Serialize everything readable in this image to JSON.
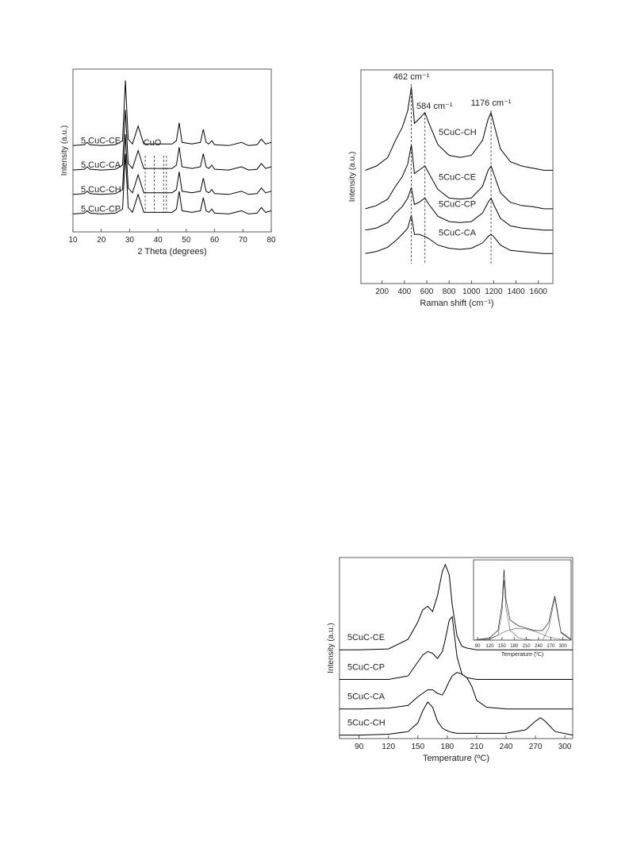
{
  "chart_data": [
    {
      "type": "line",
      "x_label": "2 Theta (degrees)",
      "y_label": "Intensity (a.u.)",
      "x": [
        10,
        14,
        15,
        16,
        20,
        25,
        27.5,
        28.5,
        29.5,
        31,
        33,
        35,
        40,
        45,
        46.5,
        47.5,
        48.5,
        52,
        55,
        56,
        57,
        58,
        59,
        60,
        65,
        69.5,
        72,
        75,
        76.5,
        78,
        80
      ],
      "series": [
        {
          "name": "5 CuC-CE",
          "color": "#000000",
          "values": [
            53,
            53.5,
            55,
            53.5,
            53,
            53.5,
            56,
            93,
            57,
            54,
            65,
            54,
            54,
            54,
            56,
            67,
            55,
            54,
            55,
            63,
            55,
            54,
            56,
            53.5,
            53,
            55,
            53,
            53.5,
            57,
            54,
            55
          ]
        },
        {
          "name": "5 CuC-CA",
          "color": "#000000",
          "values": [
            38,
            38.5,
            40,
            38.5,
            38,
            38.5,
            41,
            75,
            42,
            39,
            50,
            39,
            39,
            39,
            41,
            52,
            40,
            39,
            40,
            48,
            40,
            39,
            41,
            38.5,
            38,
            40,
            38,
            38.5,
            42,
            39,
            40
          ]
        },
        {
          "name": "5 CuC-CH",
          "color": "#000000",
          "values": [
            23,
            23.5,
            25,
            23.5,
            23,
            23.5,
            26,
            60,
            27,
            24,
            35,
            24,
            24,
            24,
            26,
            37,
            25,
            24,
            25,
            33,
            25,
            24,
            26,
            23.5,
            23,
            25,
            23,
            23.5,
            27,
            24,
            25
          ]
        },
        {
          "name": "5 CuC-CP",
          "color": "#000000",
          "values": [
            11,
            11.5,
            13,
            11.5,
            11,
            11.5,
            14,
            48,
            15,
            12,
            23,
            12,
            12,
            12,
            14,
            25,
            13,
            12,
            13,
            21,
            13,
            12,
            14,
            11.5,
            11,
            13,
            11,
            11.5,
            15,
            12,
            13
          ]
        }
      ],
      "annotations": [
        {
          "text": "CuO",
          "x": 38
        }
      ],
      "reference_lines": [
        35.5,
        38.7,
        42,
        43
      ],
      "xlim": [
        10,
        80
      ],
      "xticks": [
        10,
        20,
        30,
        40,
        50,
        60,
        70,
        80
      ],
      "ylim": [
        0,
        100
      ]
    },
    {
      "type": "line",
      "x_label": "Raman shift (cm⁻¹)",
      "y_label": "Intensity (a.u.)",
      "x": [
        50,
        150,
        250,
        320,
        380,
        430,
        462,
        490,
        530,
        584,
        620,
        700,
        800,
        900,
        1000,
        1100,
        1150,
        1176,
        1200,
        1260,
        1350,
        1450,
        1550,
        1650,
        1730
      ],
      "series": [
        {
          "name": "5CuC-CH",
          "color": "#000000",
          "values": [
            53,
            55,
            59,
            67,
            73,
            81,
            92,
            75,
            77,
            80,
            75,
            65,
            60,
            59,
            60,
            67,
            77,
            80,
            75,
            63,
            57,
            55,
            54,
            53,
            53
          ]
        },
        {
          "name": "5CuC-CE",
          "color": "#000000",
          "values": [
            35,
            36.5,
            39.5,
            45.5,
            50,
            56,
            65,
            51.5,
            53,
            55,
            51.5,
            44,
            40,
            39.5,
            40,
            45.5,
            53,
            55,
            51.5,
            42.5,
            38,
            36.5,
            36,
            35,
            35
          ]
        },
        {
          "name": "5CuC-CP",
          "color": "#000000",
          "values": [
            25,
            26,
            28.5,
            33,
            36,
            40,
            45,
            37,
            38,
            40,
            37,
            31.5,
            29,
            28.5,
            29,
            33,
            38,
            40,
            37,
            30.5,
            27,
            26,
            25.5,
            25,
            25
          ]
        },
        {
          "name": "5CuC-CA",
          "color": "#000000",
          "values": [
            14,
            15,
            17,
            20,
            23,
            26,
            32,
            23,
            23,
            22,
            21,
            18,
            16.5,
            16,
            16.5,
            19,
            22,
            23,
            22,
            18,
            15.5,
            15,
            14.5,
            14,
            14
          ]
        }
      ],
      "annotations": [
        {
          "text": "462 cm⁻¹",
          "x": 462
        },
        {
          "text": "584 cm⁻¹",
          "x": 584
        },
        {
          "text": "1176 cm⁻¹",
          "x": 1176
        }
      ],
      "xlim": [
        10,
        1730
      ],
      "xticks": [
        200,
        400,
        600,
        800,
        1000,
        1200,
        1400,
        1600
      ],
      "ylim": [
        0,
        100
      ]
    },
    {
      "type": "line",
      "x_label": "Temperature (ºC)",
      "y_label": "Intensity (a.u.)",
      "x": [
        70,
        90,
        120,
        140,
        150,
        155,
        160,
        165,
        170,
        175,
        178,
        182,
        185,
        190,
        195,
        200,
        205,
        210,
        220,
        240,
        260,
        270,
        275,
        280,
        290,
        308
      ],
      "series": [
        {
          "name": "5CuC-CE",
          "color": "#000000",
          "values": [
            49,
            49,
            49.5,
            55,
            65,
            72,
            74,
            71,
            80,
            94,
            98,
            92,
            75,
            57,
            51,
            50,
            49.5,
            49,
            49,
            49,
            49,
            49,
            49,
            49,
            49,
            49
          ]
        },
        {
          "name": "5CuC-CP",
          "color": "#000000",
          "values": [
            32,
            32,
            32,
            34,
            42,
            46,
            48,
            47,
            44,
            48,
            55,
            66,
            68,
            45,
            35,
            33,
            32.5,
            32,
            32,
            32,
            32,
            32,
            32,
            32,
            32,
            32
          ]
        },
        {
          "name": "5CuC-CA",
          "color": "#000000",
          "values": [
            15,
            15,
            15.5,
            17,
            22,
            24,
            26,
            26,
            24,
            23,
            26,
            31,
            34,
            36,
            35,
            33,
            28,
            20,
            16,
            15,
            15,
            15,
            15,
            15,
            15,
            15
          ]
        },
        {
          "name": "5CuC-CH",
          "color": "#000000",
          "values": [
            0,
            0,
            0.5,
            2,
            7,
            14,
            19,
            16,
            8,
            4,
            3,
            2,
            1.5,
            1,
            1,
            1,
            1,
            1,
            1,
            1,
            3,
            8,
            10,
            8,
            2,
            0
          ]
        }
      ],
      "xlim": [
        70,
        308
      ],
      "xticks": [
        90,
        120,
        150,
        180,
        210,
        240,
        270,
        300
      ],
      "ylim": [
        -2,
        102
      ]
    },
    {
      "type": "line",
      "x_label": "Temperature (ºC)",
      "x": [
        80,
        120,
        140,
        150,
        155,
        160,
        170,
        190,
        210,
        230,
        250,
        265,
        275,
        280,
        285,
        295,
        320
      ],
      "series": [
        {
          "color": "#000000",
          "values": [
            0,
            3,
            12,
            45,
            88,
            50,
            25,
            18,
            15,
            12,
            12,
            22,
            45,
            55,
            40,
            10,
            1
          ]
        },
        {
          "color": "#555555",
          "values": [
            0,
            1,
            6,
            35,
            75,
            40,
            12,
            3,
            1,
            0,
            0,
            0,
            0,
            0,
            0,
            0,
            0
          ]
        },
        {
          "color": "#555555",
          "values": [
            0,
            2,
            6,
            9,
            10,
            11,
            13,
            15,
            14,
            11,
            7,
            4,
            3,
            2,
            2,
            1,
            0
          ]
        },
        {
          "color": "#555555",
          "values": [
            0,
            0,
            0,
            0,
            0,
            0,
            0,
            0,
            0,
            0,
            0,
            15,
            40,
            52,
            37,
            9,
            0
          ]
        }
      ],
      "xlim": [
        80,
        320
      ],
      "xticks": [
        90,
        120,
        150,
        180,
        210,
        240,
        270,
        300
      ],
      "ylim": [
        0,
        100
      ]
    }
  ]
}
